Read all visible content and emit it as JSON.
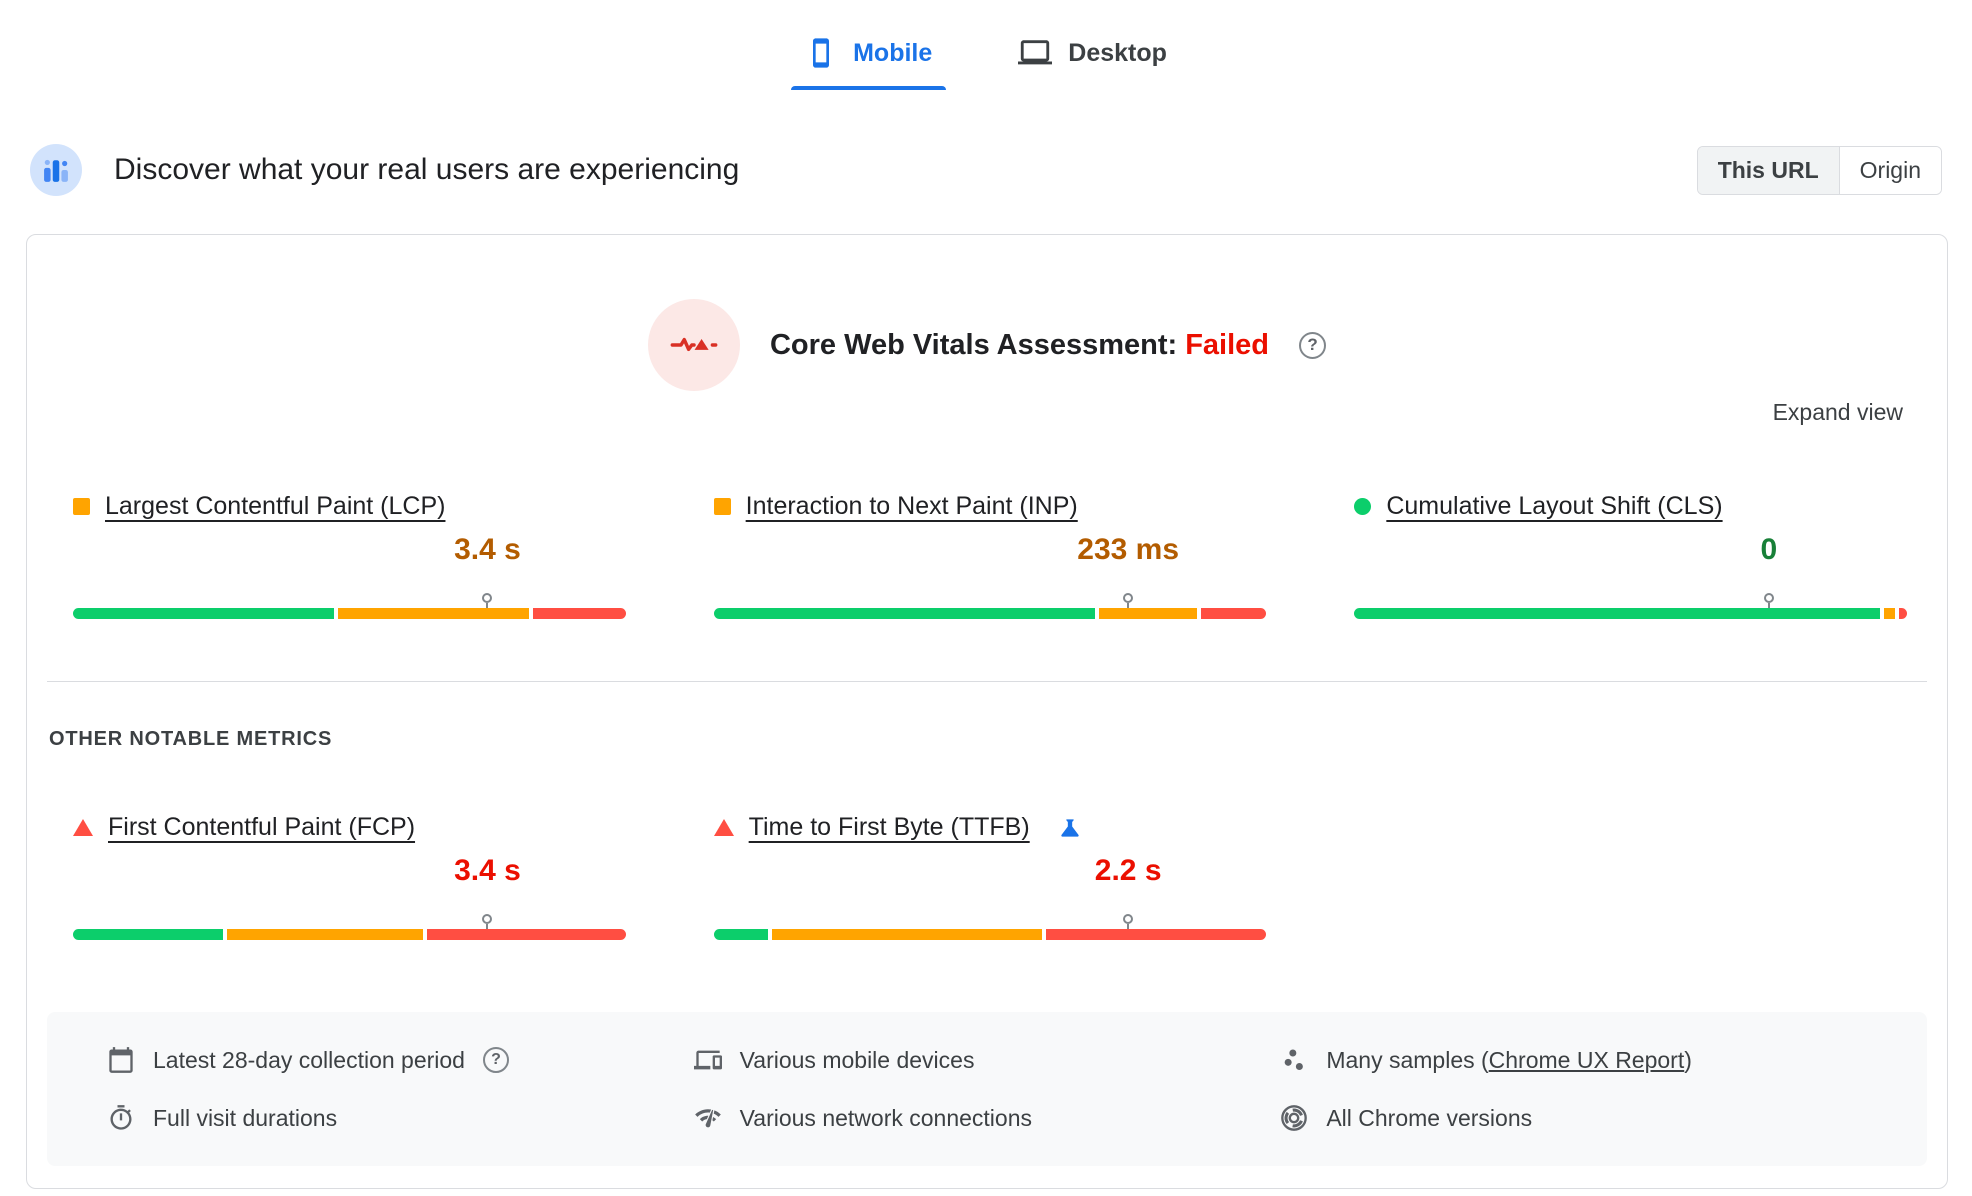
{
  "tabs": [
    {
      "label": "Mobile",
      "active": true
    },
    {
      "label": "Desktop",
      "active": false
    }
  ],
  "header": {
    "title": "Discover what your real users are experiencing",
    "scope_toggle": {
      "this_url": "This URL",
      "origin": "Origin",
      "selected": "This URL"
    }
  },
  "assessment": {
    "title": "Core Web Vitals Assessment:",
    "result": "Failed",
    "expand_label": "Expand view"
  },
  "core_metrics": [
    {
      "id": "LCP",
      "name": "Largest Contentful Paint (LCP)",
      "value": "3.4 s",
      "status": "needs-improvement",
      "p75_percent": 75,
      "distribution": {
        "good": 48,
        "needs_improvement": 35,
        "poor": 17
      }
    },
    {
      "id": "INP",
      "name": "Interaction to Next Paint (INP)",
      "value": "233 ms",
      "status": "needs-improvement",
      "p75_percent": 75,
      "distribution": {
        "good": 70,
        "needs_improvement": 18,
        "poor": 12
      }
    },
    {
      "id": "CLS",
      "name": "Cumulative Layout Shift (CLS)",
      "value": "0",
      "status": "good",
      "p75_percent": 75,
      "distribution": {
        "good": 96.5,
        "needs_improvement": 2,
        "poor": 1.5
      }
    }
  ],
  "other_metrics_label": "OTHER NOTABLE METRICS",
  "other_metrics": [
    {
      "id": "FCP",
      "name": "First Contentful Paint (FCP)",
      "value": "3.4 s",
      "status": "poor",
      "p75_percent": 75,
      "distribution": {
        "good": 27.5,
        "needs_improvement": 36,
        "poor": 36.5
      }
    },
    {
      "id": "TTFB",
      "name": "Time to First Byte (TTFB)",
      "value": "2.2 s",
      "status": "poor",
      "experimental": true,
      "p75_percent": 75,
      "distribution": {
        "good": 10,
        "needs_improvement": 49.5,
        "poor": 40.5
      }
    }
  ],
  "collection_info": {
    "items": [
      {
        "icon": "calendar-icon",
        "text": "Latest 28-day collection period",
        "has_help": true
      },
      {
        "icon": "devices-icon",
        "text": "Various mobile devices"
      },
      {
        "icon": "samples-icon",
        "prefix": "Many samples (",
        "link": "Chrome UX Report",
        "suffix": ")"
      },
      {
        "icon": "stopwatch-icon",
        "text": "Full visit durations"
      },
      {
        "icon": "network-icon",
        "text": "Various network connections"
      },
      {
        "icon": "chrome-icon",
        "text": "All Chrome versions"
      }
    ]
  },
  "colors": {
    "good": "#0cce6b",
    "needs_improvement": "#ffa400",
    "poor": "#ff4e42",
    "accent_blue": "#1a73e8",
    "failed_red": "#eb0f00",
    "value_orange": "#b35c00",
    "value_green": "#188038",
    "value_red": "#eb0f00"
  }
}
